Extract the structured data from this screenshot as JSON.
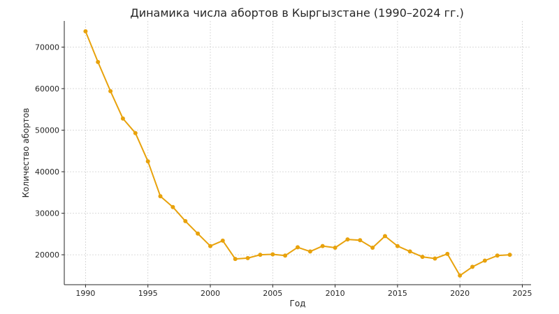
{
  "chart_data": {
    "type": "line",
    "title": "Динамика числа абортов в Кыргызстане (1990–2024 гг.)",
    "xlabel": "Год",
    "ylabel": "Количество абортов",
    "xlim": [
      1988.3,
      2025.7
    ],
    "ylim": [
      12800,
      76300
    ],
    "x_ticks": [
      1990,
      1995,
      2000,
      2005,
      2010,
      2015,
      2020,
      2025
    ],
    "y_ticks": [
      20000,
      30000,
      40000,
      50000,
      60000,
      70000
    ],
    "grid": true,
    "legend": "none",
    "series": [
      {
        "color": "#E8A20C",
        "x": [
          1990,
          1991,
          1992,
          1993,
          1994,
          1995,
          1996,
          1997,
          1998,
          1999,
          2000,
          2001,
          2002,
          2003,
          2004,
          2005,
          2006,
          2007,
          2008,
          2009,
          2010,
          2011,
          2012,
          2013,
          2014,
          2015,
          2016,
          2017,
          2018,
          2019,
          2020,
          2021,
          2022,
          2023,
          2024
        ],
        "y": [
          73800,
          66400,
          59400,
          52800,
          49300,
          42500,
          34100,
          31500,
          28100,
          25100,
          22100,
          23400,
          19000,
          19200,
          20000,
          20100,
          19800,
          21800,
          20800,
          22100,
          21700,
          23700,
          23500,
          21700,
          24500,
          22100,
          20800,
          19500,
          19100,
          20200,
          15000,
          17100,
          18600,
          19800,
          20000
        ]
      }
    ]
  }
}
